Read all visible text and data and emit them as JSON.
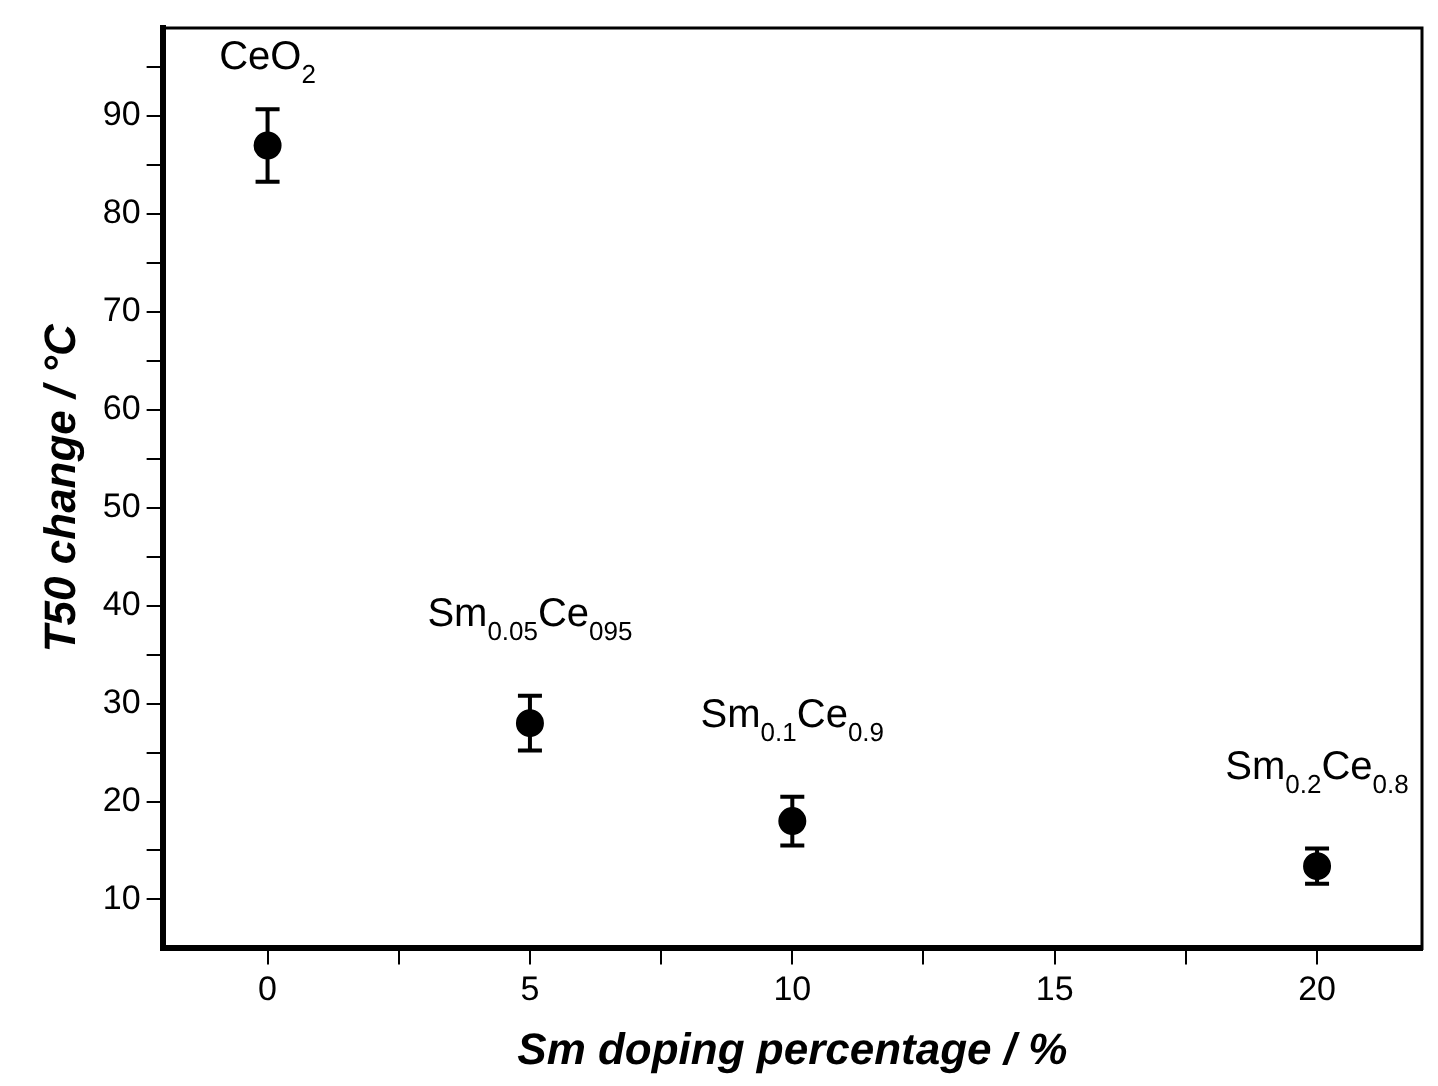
{
  "chart_data": {
    "type": "scatter",
    "xlabel": "Sm doping percentage / %",
    "ylabel": "T50 change / °C",
    "x": [
      0,
      5,
      10,
      20
    ],
    "series": [
      {
        "color": "#000000",
        "values": [
          87,
          28,
          18,
          13.4
        ],
        "errors": [
          3.7,
          2.8,
          2.5,
          1.8
        ]
      }
    ],
    "marker": "circle",
    "grid": false,
    "xlim": [
      -2,
      22
    ],
    "xticks": [
      0,
      {
        "value": 2.5,
        "label": null
      },
      5,
      {
        "value": 7.5,
        "label": null
      },
      10,
      {
        "value": 12.5,
        "label": null
      },
      15,
      {
        "value": 17.5,
        "label": null
      },
      20
    ],
    "ylim": [
      5,
      99
    ],
    "yticks": [
      10,
      {
        "value": 15,
        "label": null
      },
      20,
      {
        "value": 25,
        "label": null
      },
      30,
      {
        "value": 35,
        "label": null
      },
      40,
      {
        "value": 45,
        "label": null
      },
      50,
      {
        "value": 55,
        "label": null
      },
      60,
      {
        "value": 65,
        "label": null
      },
      70,
      {
        "value": 75,
        "label": null
      },
      80,
      {
        "value": 85,
        "label": null
      },
      90,
      {
        "value": 95,
        "label": null
      }
    ],
    "annotations": [
      "CeO$_{2}$",
      "Sm$_{0.05}$Ce$_{095}$",
      "Sm$_{0.1}$Ce$_{0.9}$",
      "Sm$_{0.2}$Ce$_{0.8}$"
    ]
  }
}
